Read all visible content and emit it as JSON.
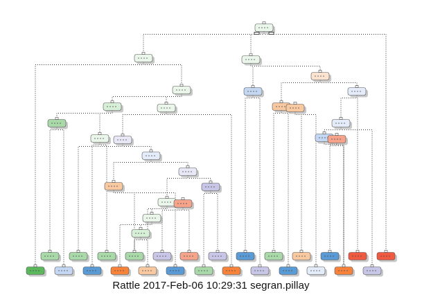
{
  "caption": "Rattle 2017-Feb-06 10:29:31 segran.pillay",
  "colors": {
    "green": "#a9d9a9",
    "green_light": "#d7efd7",
    "green_pale": "#eaf6ea",
    "green_dark": "#5cb85c",
    "blue_light": "#c4d7f2",
    "blue_pale": "#e3ecf8",
    "blue": "#5b9bd5",
    "orange_light": "#f8c9a0",
    "orange": "#f7823a",
    "salmon": "#f5a38a",
    "red": "#f05a40",
    "purple_light": "#c8c6e6",
    "purple_pale": "#e8e7f5",
    "peach_pale": "#fbe3d0",
    "edge": "#333333",
    "shadow": "#9a9a9a"
  }
}
